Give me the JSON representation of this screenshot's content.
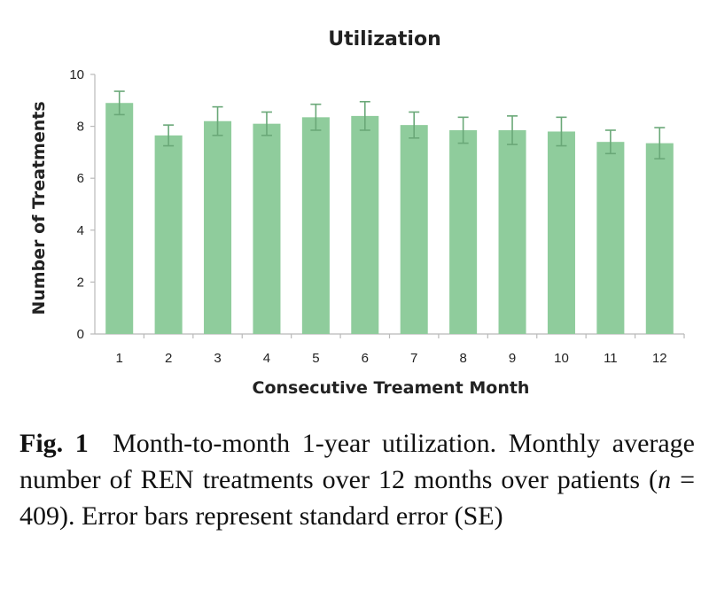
{
  "chart_data": {
    "type": "bar",
    "title": "Utilization",
    "xlabel": "Consecutive Treament Month",
    "ylabel": "Number of Treatments",
    "categories": [
      "1",
      "2",
      "3",
      "4",
      "5",
      "6",
      "7",
      "8",
      "9",
      "10",
      "11",
      "12"
    ],
    "values": [
      8.9,
      7.65,
      8.2,
      8.1,
      8.35,
      8.4,
      8.05,
      7.85,
      7.85,
      7.8,
      7.4,
      7.35
    ],
    "error": [
      0.45,
      0.4,
      0.55,
      0.45,
      0.5,
      0.55,
      0.5,
      0.5,
      0.55,
      0.55,
      0.45,
      0.6
    ],
    "ylim": [
      0,
      10
    ],
    "yticks": [
      "0",
      "2",
      "4",
      "6",
      "8",
      "10"
    ],
    "grid": false,
    "colors": {
      "bar": "#8fcc9c",
      "error_bar": "#6aa878",
      "axis": "#b9b9b9"
    }
  },
  "caption": {
    "fig_label": "Fig. 1",
    "text_before": "Month-to-month 1-year utilization. Monthly average number of REN treatments over 12 months over patients (",
    "italic": "n",
    "text_after": " = 409). Error bars represent standard error (SE)"
  }
}
